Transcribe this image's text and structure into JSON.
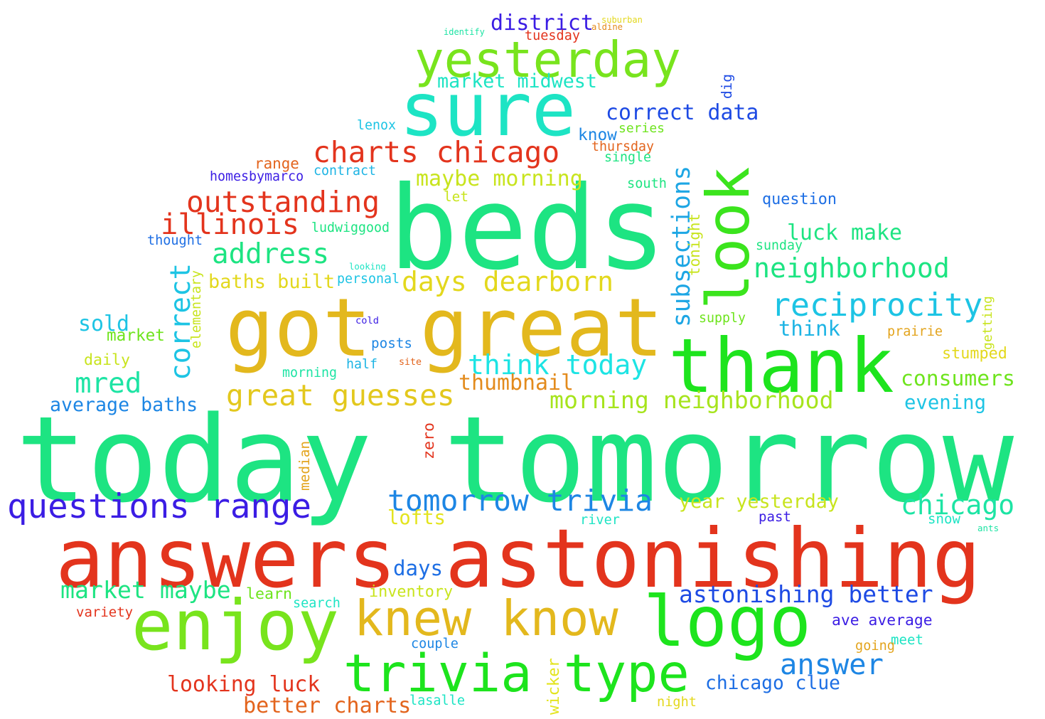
{
  "words": [
    {
      "text": "today tomorrow",
      "color": "#1de482"
    },
    {
      "text": "answers astonishing",
      "color": "#e3341d"
    },
    {
      "text": "beds",
      "color": "#1de482"
    },
    {
      "text": "got great",
      "color": "#e3b81d"
    },
    {
      "text": "thank",
      "color": "#1de41d"
    },
    {
      "text": "sure",
      "color": "#1de4c4"
    },
    {
      "text": "logo",
      "color": "#1de41d"
    },
    {
      "text": "enjoy",
      "color": "#78e41d"
    },
    {
      "text": "look",
      "color": "#3be41d"
    },
    {
      "text": "yesterday",
      "color": "#78e41d"
    },
    {
      "text": "trivia type",
      "color": "#1de41d"
    },
    {
      "text": "knew know",
      "color": "#e3b81d"
    },
    {
      "text": "questions range",
      "color": "#3b1de4"
    },
    {
      "text": "tomorrow trivia",
      "color": "#1d86e4"
    },
    {
      "text": "reciprocity",
      "color": "#1dc4e4"
    },
    {
      "text": "charts chicago",
      "color": "#e3341d"
    },
    {
      "text": "outstanding",
      "color": "#e3341d"
    },
    {
      "text": "illinois",
      "color": "#e3341d"
    },
    {
      "text": "great guesses",
      "color": "#e3c81d"
    },
    {
      "text": "subsections",
      "color": "#1da6e4"
    },
    {
      "text": "address",
      "color": "#1de482"
    },
    {
      "text": "days dearborn",
      "color": "#e3d81d"
    },
    {
      "text": "neighborhood",
      "color": "#1de482"
    },
    {
      "text": "chicago",
      "color": "#1de4a4"
    },
    {
      "text": "answer",
      "color": "#1d86e4"
    },
    {
      "text": "correct",
      "color": "#1dc4e4"
    },
    {
      "text": "think today",
      "color": "#1de4e4"
    },
    {
      "text": "morning neighborhood",
      "color": "#a6e41d"
    },
    {
      "text": "district",
      "color": "#3b1de4"
    },
    {
      "text": "mred",
      "color": "#1de4a4"
    },
    {
      "text": "astonishing better",
      "color": "#1d4ae4"
    },
    {
      "text": "maybe morning",
      "color": "#c8e41d"
    },
    {
      "text": "market maybe",
      "color": "#1de482"
    },
    {
      "text": "looking luck",
      "color": "#e3341d"
    },
    {
      "text": "chicago clue",
      "color": "#1d6ee4"
    },
    {
      "text": "correct data",
      "color": "#1d4ae4"
    },
    {
      "text": "luck make",
      "color": "#1de482"
    },
    {
      "text": "consumers",
      "color": "#6ee41d"
    },
    {
      "text": "thumbnail",
      "color": "#e38b1d"
    },
    {
      "text": "better charts",
      "color": "#e3641d"
    },
    {
      "text": "market midwest",
      "color": "#1de4c4"
    },
    {
      "text": "sold",
      "color": "#1dc4e4"
    },
    {
      "text": "think",
      "color": "#1db4e4"
    },
    {
      "text": "average baths",
      "color": "#1d86e4"
    },
    {
      "text": "baths built",
      "color": "#e3d81d"
    },
    {
      "text": "year yesterday",
      "color": "#c8e41d"
    },
    {
      "text": "lofts",
      "color": "#e3e41d"
    },
    {
      "text": "days",
      "color": "#1d6ee4"
    },
    {
      "text": "evening",
      "color": "#1dc4e4"
    },
    {
      "text": "ave average",
      "color": "#3b1de4"
    },
    {
      "text": "question",
      "color": "#1d6ee4"
    },
    {
      "text": "stumped",
      "color": "#e3d81d"
    },
    {
      "text": "daily",
      "color": "#c8e41d"
    },
    {
      "text": "market",
      "color": "#6ee41d"
    },
    {
      "text": "range",
      "color": "#e3641d"
    },
    {
      "text": "homesbymarco",
      "color": "#3b1de4"
    },
    {
      "text": "contract",
      "color": "#1db4e4"
    },
    {
      "text": "lenox",
      "color": "#1dc4e4"
    },
    {
      "text": "know",
      "color": "#1d86e4"
    },
    {
      "text": "series",
      "color": "#6ee41d"
    },
    {
      "text": "thursday",
      "color": "#e3641d"
    },
    {
      "text": "single",
      "color": "#1de482"
    },
    {
      "text": "south",
      "color": "#1de482"
    },
    {
      "text": "let",
      "color": "#c8e41d"
    },
    {
      "text": "ludwiggood",
      "color": "#1de482"
    },
    {
      "text": "thought",
      "color": "#1d6ee4"
    },
    {
      "text": "tonight",
      "color": "#c8e41d"
    },
    {
      "text": "sunday",
      "color": "#1de482"
    },
    {
      "text": "elementary",
      "color": "#c8e41d"
    },
    {
      "text": "personal",
      "color": "#1dc4e4"
    },
    {
      "text": "looking",
      "color": "#1de4c4"
    },
    {
      "text": "supply",
      "color": "#6ee41d"
    },
    {
      "text": "prairie",
      "color": "#e3a41d"
    },
    {
      "text": "getting",
      "color": "#c8e41d"
    },
    {
      "text": "cold",
      "color": "#3b1de4"
    },
    {
      "text": "posts",
      "color": "#1d86e4"
    },
    {
      "text": "morning",
      "color": "#1de4a4"
    },
    {
      "text": "half",
      "color": "#1db4e4"
    },
    {
      "text": "site",
      "color": "#e3641d"
    },
    {
      "text": "zero",
      "color": "#e3341d"
    },
    {
      "text": "median",
      "color": "#e3a41d"
    },
    {
      "text": "river",
      "color": "#1de4c4"
    },
    {
      "text": "past",
      "color": "#3b1de4"
    },
    {
      "text": "snow",
      "color": "#1de4c4"
    },
    {
      "text": "ants",
      "color": "#1de4a4"
    },
    {
      "text": "learn",
      "color": "#6ee41d"
    },
    {
      "text": "search",
      "color": "#1de4c4"
    },
    {
      "text": "inventory",
      "color": "#c8e41d"
    },
    {
      "text": "variety",
      "color": "#e3341d"
    },
    {
      "text": "couple",
      "color": "#1d86e4"
    },
    {
      "text": "meet",
      "color": "#1de4c4"
    },
    {
      "text": "going",
      "color": "#e3a41d"
    },
    {
      "text": "wicker",
      "color": "#e3e41d"
    },
    {
      "text": "lasalle",
      "color": "#1de4c4"
    },
    {
      "text": "night",
      "color": "#e3d81d"
    },
    {
      "text": "tuesday",
      "color": "#e3341d"
    },
    {
      "text": "identify",
      "color": "#1de4a4"
    },
    {
      "text": "suburban",
      "color": "#e3d81d"
    },
    {
      "text": "aldine",
      "color": "#e38b1d"
    },
    {
      "text": "dig",
      "color": "#1d4ae4"
    }
  ]
}
